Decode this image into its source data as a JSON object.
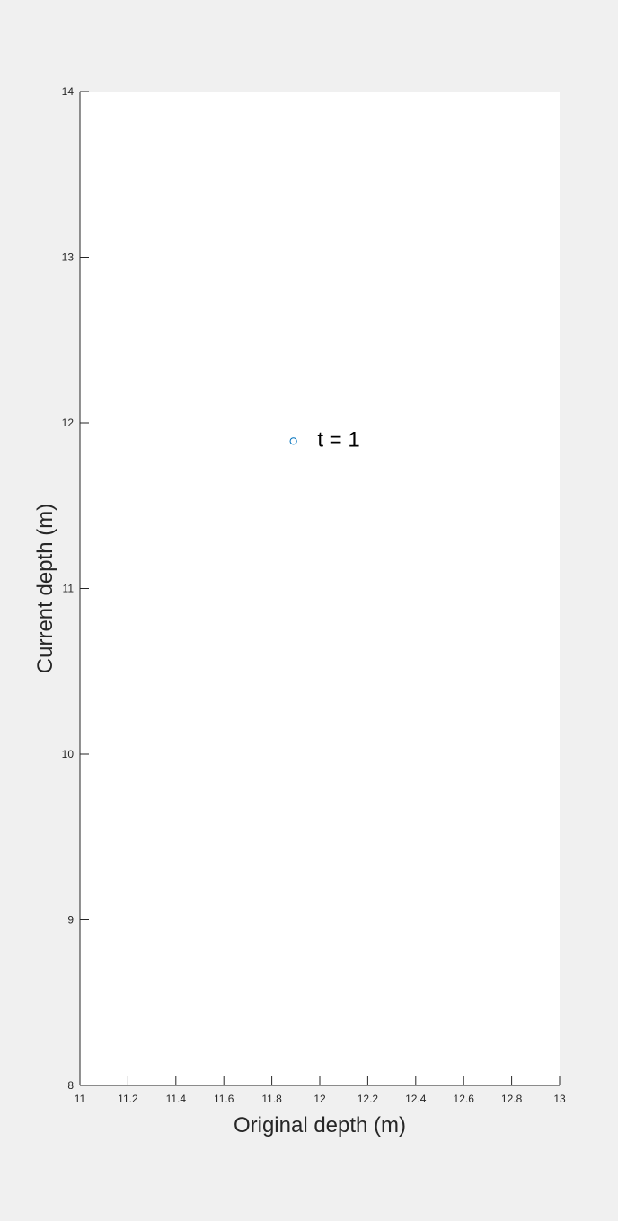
{
  "chart_data": {
    "type": "scatter",
    "title": "",
    "xlabel": "Original depth (m)",
    "ylabel": "Current depth (m)",
    "xlim": [
      11,
      13
    ],
    "ylim": [
      8,
      14
    ],
    "x_ticks": [
      "11",
      "11.2",
      "11.4",
      "11.6",
      "11.8",
      "12",
      "12.2",
      "12.4",
      "12.6",
      "12.8",
      "13"
    ],
    "y_ticks": [
      "8",
      "9",
      "10",
      "11",
      "12",
      "13",
      "14"
    ],
    "grid": false,
    "series": [
      {
        "x": [
          11.89
        ],
        "y": [
          11.89
        ],
        "marker": "open-circle",
        "color": "#0072bd"
      }
    ],
    "annotations": [
      {
        "text": "t = 1",
        "x": 11.99,
        "y": 11.9
      }
    ]
  }
}
